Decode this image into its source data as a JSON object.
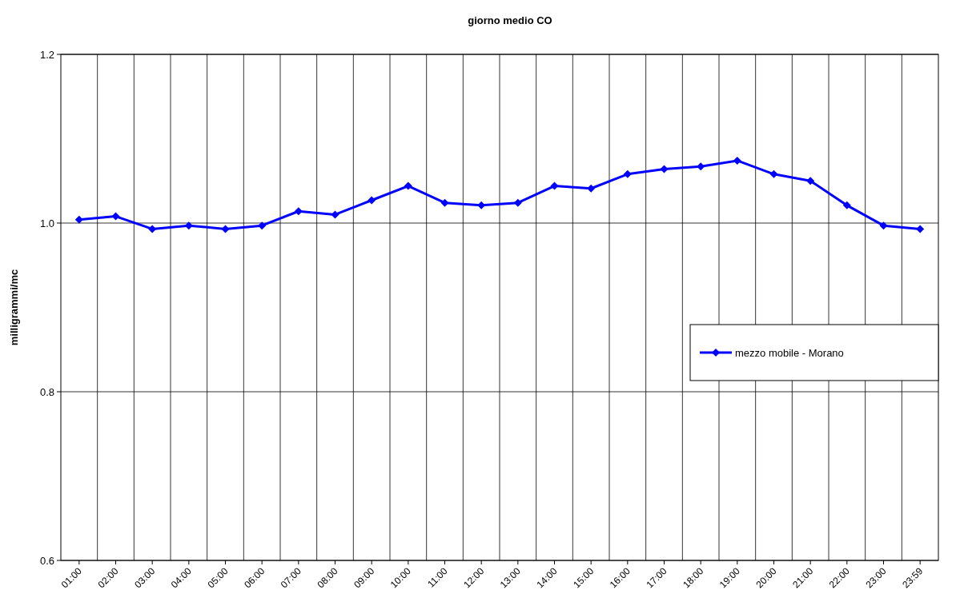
{
  "chart_data": {
    "type": "line",
    "title": "giorno medio CO",
    "ylabel": "milligrammi/mc",
    "categories": [
      "01:00",
      "02:00",
      "03:00",
      "04:00",
      "05:00",
      "06:00",
      "07:00",
      "08:00",
      "09:00",
      "10:00",
      "11:00",
      "12:00",
      "13:00",
      "14:00",
      "15:00",
      "16:00",
      "17:00",
      "18:00",
      "19:00",
      "20:00",
      "21:00",
      "22:00",
      "23:00",
      "23:59"
    ],
    "series": [
      {
        "name": "mezzo mobile - Morano",
        "color": "#0000ff",
        "values": [
          1.004,
          1.008,
          0.993,
          0.997,
          0.993,
          0.997,
          1.014,
          1.01,
          1.027,
          1.044,
          1.024,
          1.021,
          1.024,
          1.044,
          1.041,
          1.058,
          1.064,
          1.067,
          1.074,
          1.058,
          1.05,
          1.021,
          0.997,
          0.993
        ]
      }
    ],
    "ylim": [
      0.6,
      1.2
    ],
    "yticks": [
      0.6,
      0.8,
      {
        "value": 1,
        "label": "1.0"
      },
      1.2
    ],
    "grid": true,
    "legend": "right",
    "marker": "diamond",
    "line_style": "solid"
  }
}
